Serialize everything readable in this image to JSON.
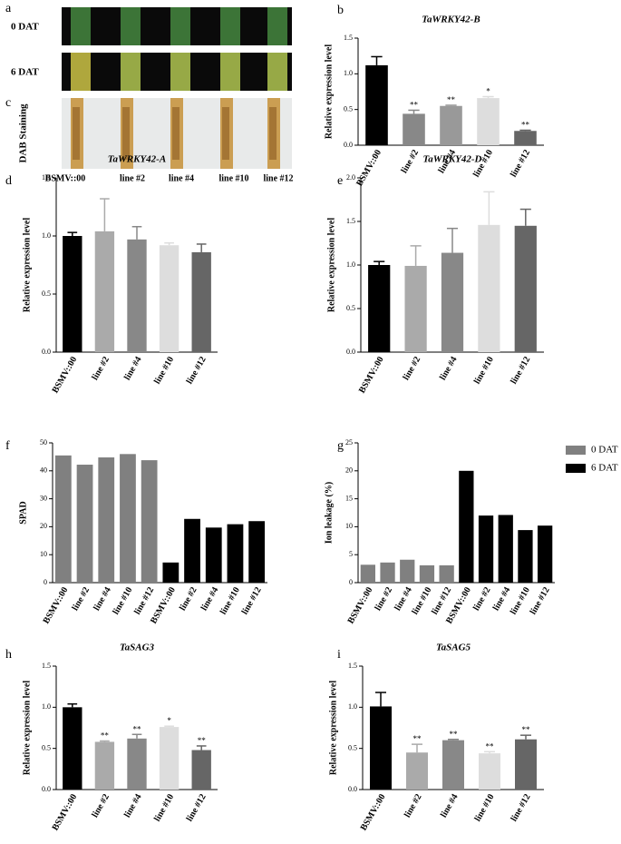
{
  "panel_labels": [
    "a",
    "b",
    "c",
    "d",
    "e",
    "f",
    "g",
    "h",
    "i"
  ],
  "photos": {
    "rows": [
      "0 DAT",
      "6 DAT"
    ],
    "staining": "DAB Staining",
    "categories": [
      "BSMV::00",
      "line #2",
      "line #4",
      "line #10",
      "line #12"
    ]
  },
  "chart_data": [
    {
      "type": "bar",
      "title": "TaWRKY42-B",
      "ylabel": "Relative expression level",
      "categories": [
        "BSMV::00",
        "line #2",
        "line #4",
        "line #10",
        "line #12"
      ],
      "values": [
        1.12,
        0.44,
        0.55,
        0.66,
        0.2
      ],
      "errors": [
        0.12,
        0.05,
        0.01,
        0.02,
        0.01
      ],
      "colors": [
        "#000000",
        "#888888",
        "#999999",
        "#dddddd",
        "#666666"
      ],
      "annotations": [
        null,
        "**",
        "**",
        "*",
        "**"
      ],
      "ylim": [
        0,
        1.5
      ],
      "yticks": [
        {
          "value": 0,
          "label": "0.0"
        },
        0.5,
        {
          "value": 1,
          "label": "1.0"
        },
        1.5
      ]
    },
    {
      "type": "bar",
      "title": "TaWRKY42-A",
      "ylabel": "Relative expression level",
      "categories": [
        "BSMV::00",
        "line #2",
        "line #4",
        "line #10",
        "line #12"
      ],
      "values": [
        1.0,
        1.04,
        0.97,
        0.92,
        0.86
      ],
      "errors": [
        0.03,
        0.28,
        0.11,
        0.02,
        0.07
      ],
      "colors": [
        "#000000",
        "#aaaaaa",
        "#888888",
        "#dddddd",
        "#666666"
      ],
      "ylim": [
        0,
        1.5
      ],
      "yticks": [
        {
          "value": 0,
          "label": "0.0"
        },
        0.5,
        {
          "value": 1,
          "label": "1.0"
        },
        1.5
      ]
    },
    {
      "type": "bar",
      "title": "TaWRKY42-D",
      "ylabel": "Relative expression level",
      "categories": [
        "BSMV::00",
        "line #2",
        "line #4",
        "line #10",
        "line #12"
      ],
      "values": [
        1.0,
        0.99,
        1.14,
        1.46,
        1.45
      ],
      "errors": [
        0.04,
        0.23,
        0.28,
        0.38,
        0.19
      ],
      "colors": [
        "#000000",
        "#aaaaaa",
        "#888888",
        "#dddddd",
        "#666666"
      ],
      "ylim": [
        0,
        2
      ],
      "yticks": [
        {
          "value": 0,
          "label": "0.0"
        },
        0.5,
        {
          "value": 1,
          "label": "1.0"
        },
        1.5,
        {
          "value": 2,
          "label": "2.0"
        }
      ]
    },
    {
      "type": "bar",
      "ylabel": "SPAD",
      "categories": [
        "BSMV::00",
        "line #2",
        "line #4",
        "line #10",
        "line #12",
        "BSMV::00",
        "line #2",
        "line #4",
        "line #10",
        "line #12"
      ],
      "series": [
        {
          "color": "#808080",
          "values": [
            45.5,
            42.2,
            44.8,
            46,
            43.8,
            null,
            null,
            null,
            null,
            null
          ]
        },
        {
          "color": "#000000",
          "values": [
            null,
            null,
            null,
            null,
            null,
            7.2,
            22.8,
            19.7,
            20.9,
            22
          ]
        }
      ],
      "ylim": [
        0,
        50
      ],
      "yticks": [
        0,
        10,
        20,
        30,
        40,
        50
      ]
    },
    {
      "type": "bar",
      "ylabel": "Ion leakage (%)",
      "categories": [
        "BSMV::00",
        "line #2",
        "line #4",
        "line #10",
        "line #12",
        "BSMV::00",
        "line #2",
        "line #4",
        "line #10",
        "line #12"
      ],
      "series": [
        {
          "name": "0 DAT",
          "color": "#808080",
          "values": [
            3.2,
            3.6,
            4.1,
            3.1,
            3.1,
            null,
            null,
            null,
            null,
            null
          ]
        },
        {
          "name": "6 DAT",
          "color": "#000000",
          "values": [
            null,
            null,
            null,
            null,
            null,
            20,
            12,
            12.1,
            9.4,
            10.2
          ]
        }
      ],
      "legend": "right",
      "ylim": [
        0,
        25
      ],
      "yticks": [
        0,
        5,
        10,
        15,
        20,
        25
      ]
    },
    {
      "type": "bar",
      "title": "TaSAG3",
      "ylabel": "Relative expression level",
      "categories": [
        "BSMV::00",
        "line #2",
        "line #4",
        "line #10",
        "line #12"
      ],
      "values": [
        1.0,
        0.58,
        0.62,
        0.76,
        0.48
      ],
      "errors": [
        0.04,
        0.01,
        0.05,
        0.01,
        0.05
      ],
      "colors": [
        "#000000",
        "#aaaaaa",
        "#888888",
        "#dddddd",
        "#666666"
      ],
      "annotations": [
        null,
        "**",
        "**",
        "*",
        "**"
      ],
      "ylim": [
        0,
        1.5
      ],
      "yticks": [
        {
          "value": 0,
          "label": "0.0"
        },
        0.5,
        {
          "value": 1,
          "label": "1.0"
        },
        1.5
      ]
    },
    {
      "type": "bar",
      "title": "TaSAG5",
      "ylabel": "Relative expression level",
      "categories": [
        "BSMV::00",
        "line #2",
        "line #4",
        "line #10",
        "line #12"
      ],
      "values": [
        1.01,
        0.45,
        0.6,
        0.44,
        0.61
      ],
      "errors": [
        0.17,
        0.1,
        0.01,
        0.02,
        0.05
      ],
      "colors": [
        "#000000",
        "#aaaaaa",
        "#888888",
        "#dddddd",
        "#666666"
      ],
      "annotations": [
        null,
        "**",
        "**",
        "**",
        "**"
      ],
      "ylim": [
        0,
        1.5
      ],
      "yticks": [
        {
          "value": 0,
          "label": "0.0"
        },
        0.5,
        {
          "value": 1,
          "label": "1.0"
        },
        1.5
      ]
    }
  ]
}
